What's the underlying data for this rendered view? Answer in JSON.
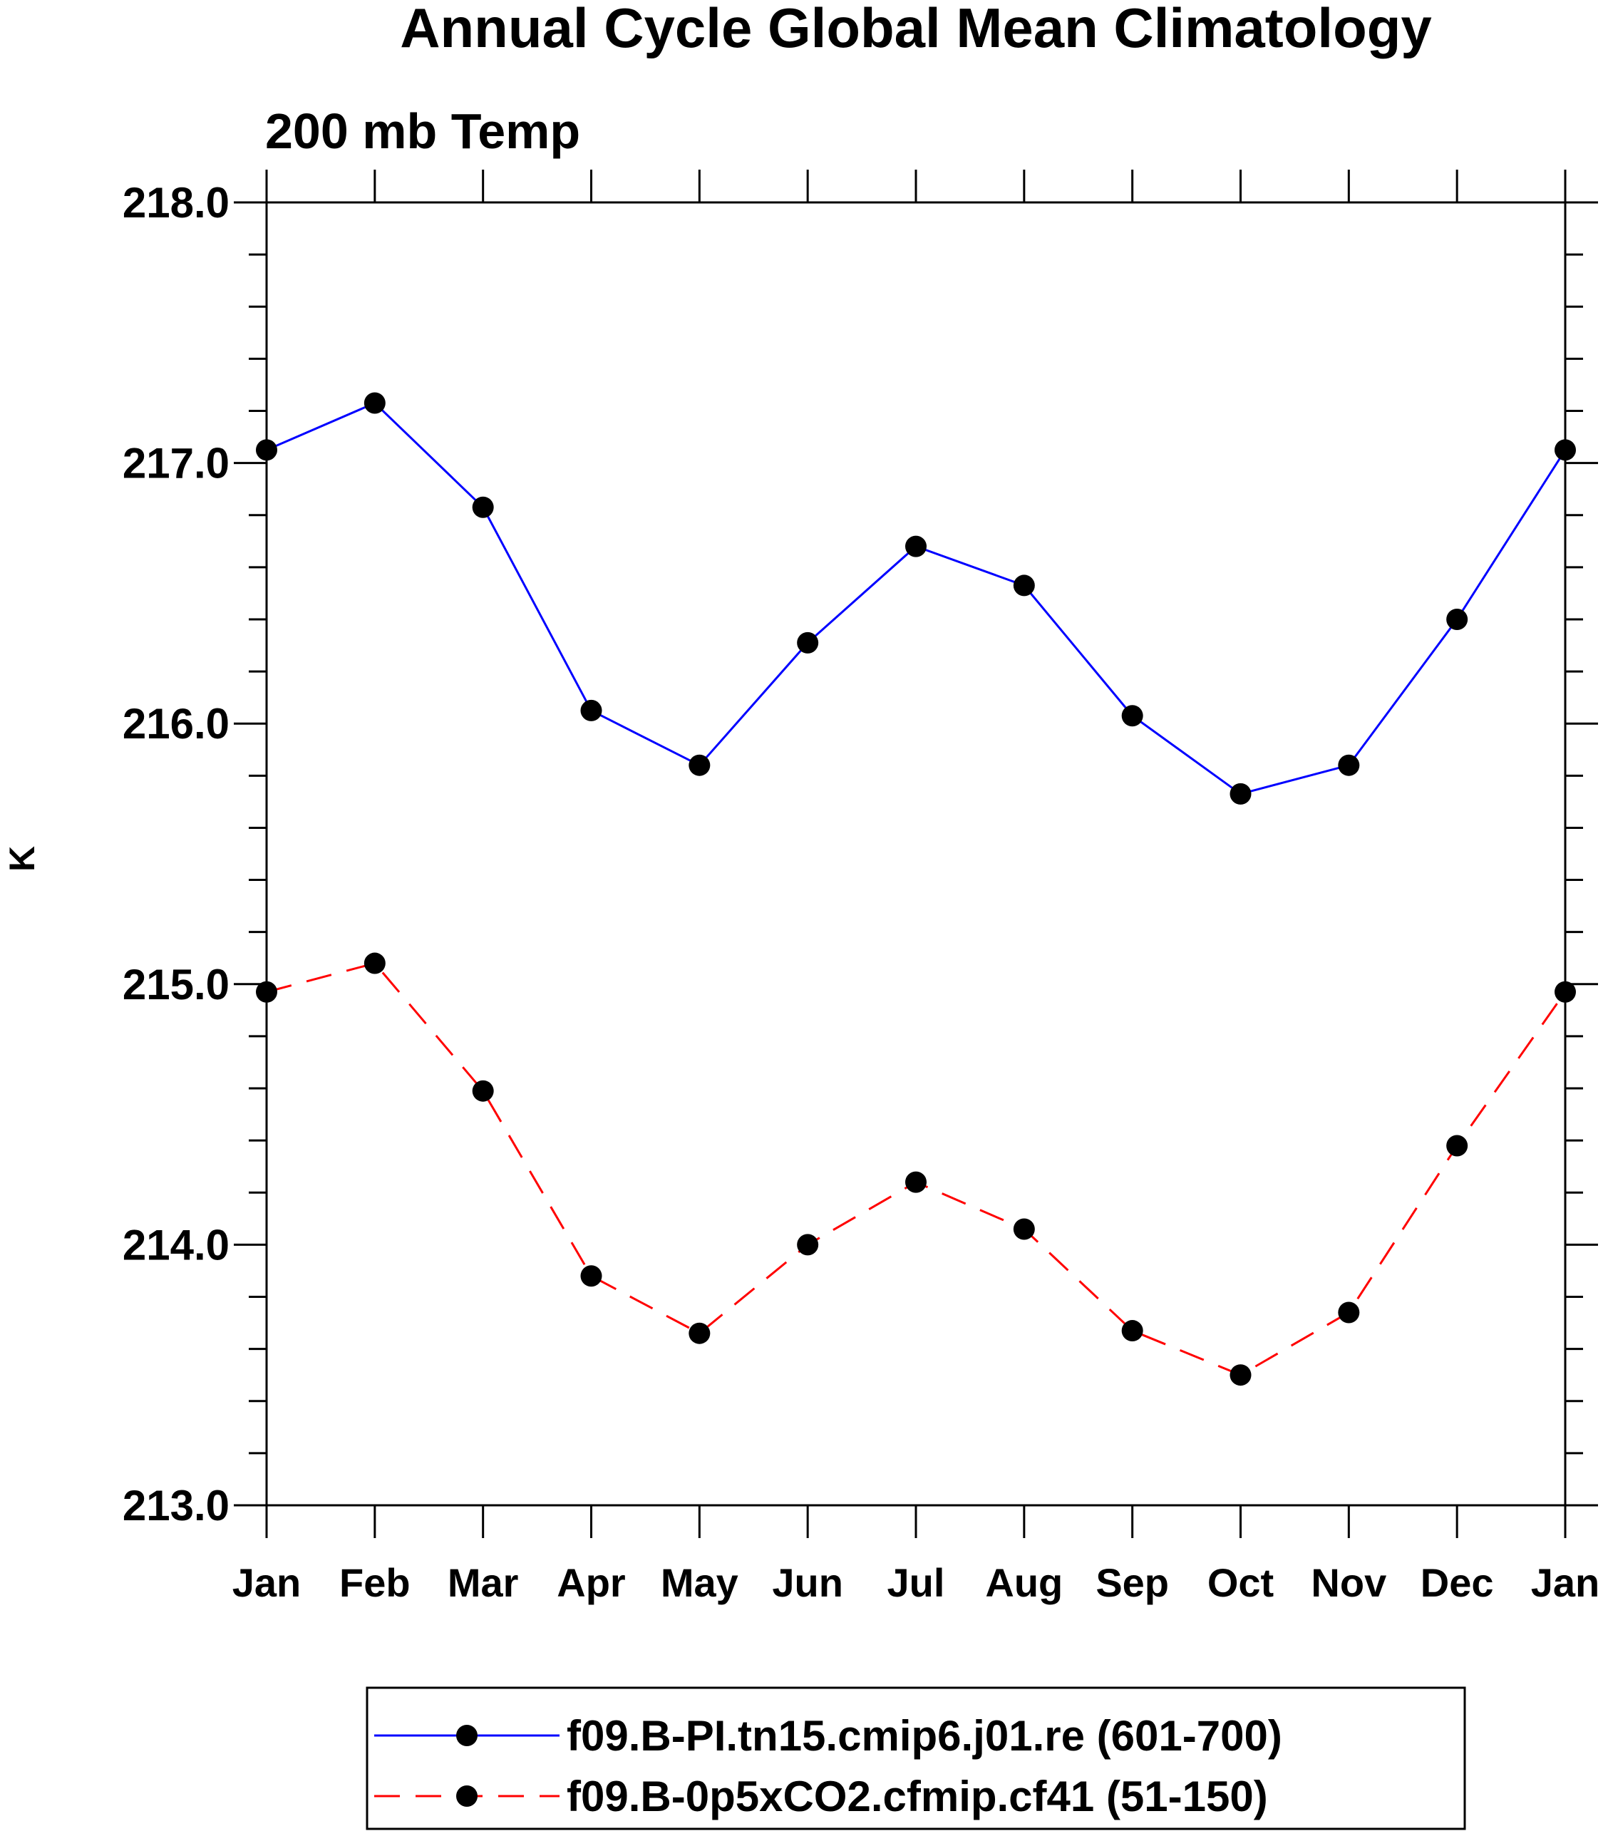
{
  "chart_data": {
    "type": "line",
    "title": "Annual Cycle Global Mean Climatology",
    "subtitle": "200 mb Temp",
    "ylabel": "K",
    "xlabel": "",
    "ylim": [
      213.0,
      218.0
    ],
    "yticks": [
      "213.0",
      "214.0",
      "215.0",
      "216.0",
      "217.0",
      "218.0"
    ],
    "categories": [
      "Jan",
      "Feb",
      "Mar",
      "Apr",
      "May",
      "Jun",
      "Jul",
      "Aug",
      "Sep",
      "Oct",
      "Nov",
      "Dec",
      "Jan"
    ],
    "legend_position": "bottom",
    "grid": false,
    "series": [
      {
        "name": "f09.B-PI.tn15.cmip6.j01.re (601-700)",
        "color": "#0000ff",
        "style": "solid",
        "marker": "filled-circle",
        "values": [
          217.05,
          217.23,
          216.83,
          216.05,
          215.84,
          216.31,
          216.68,
          216.53,
          216.03,
          215.73,
          215.84,
          216.4,
          217.05
        ]
      },
      {
        "name": "f09.B-0p5xCO2.cfmip.cf41 (51-150)",
        "color": "#ff0000",
        "style": "dashed",
        "marker": "filled-circle",
        "values": [
          214.97,
          215.08,
          214.59,
          213.88,
          213.66,
          214.0,
          214.24,
          214.06,
          213.67,
          213.5,
          213.74,
          214.38,
          214.97
        ]
      }
    ]
  }
}
